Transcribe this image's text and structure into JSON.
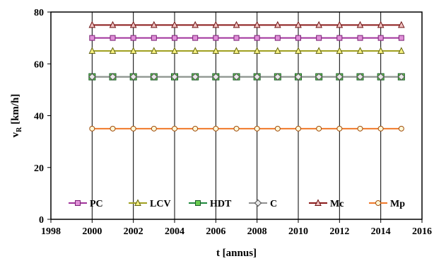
{
  "chart_data": {
    "type": "line",
    "x": [
      2000,
      2001,
      2002,
      2003,
      2004,
      2005,
      2006,
      2007,
      2008,
      2009,
      2010,
      2011,
      2012,
      2013,
      2014,
      2015
    ],
    "xlim": [
      1998,
      2016
    ],
    "ylim": [
      0,
      80
    ],
    "xticks": [
      "1998",
      "2000",
      "2002",
      "2004",
      "2006",
      "2008",
      "2010",
      "2012",
      "2014",
      "2016"
    ],
    "yticks": [
      "0",
      "20",
      "40",
      "60",
      "80"
    ],
    "xlabel": "t [annus]",
    "ylabel": {
      "main": "v",
      "sub": "R",
      "rest": " [km/h]"
    },
    "grid": "vertical",
    "legend_position": "bottom-inside",
    "series": [
      {
        "name": "PC",
        "value": 70,
        "line_color": "#a0329b",
        "marker": "square",
        "marker_fill": "#e090d8",
        "marker_edge": "#7a2075"
      },
      {
        "name": "LCV",
        "value": 65,
        "line_color": "#a0a020",
        "marker": "triangle",
        "marker_fill": "#f5f080",
        "marker_edge": "#606010"
      },
      {
        "name": "HDT",
        "value": 55,
        "line_color": "#1e8a3c",
        "marker": "square",
        "marker_fill": "#6acd50",
        "marker_edge": "#1a5a28"
      },
      {
        "name": "C",
        "value": 55,
        "line_color": "#909090",
        "marker": "diamond",
        "marker_fill": "#e8e8e8",
        "marker_edge": "#505050"
      },
      {
        "name": "Mc",
        "value": 75,
        "line_color": "#8b1a1a",
        "marker": "triangle",
        "marker_fill": "#f0c0c0",
        "marker_edge": "#6a1010"
      },
      {
        "name": "Mp",
        "value": 35,
        "line_color": "#f07828",
        "marker": "circle",
        "marker_fill": "#fff8d8",
        "marker_edge": "#a05010"
      }
    ]
  }
}
